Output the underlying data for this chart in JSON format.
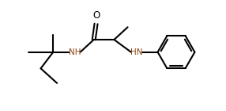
{
  "bg_color": "#ffffff",
  "line_color": "#000000",
  "nh_color": "#8B4513",
  "bond_width": 1.5,
  "fig_width": 2.86,
  "fig_height": 1.4,
  "dpi": 100,
  "font_size": 7.5,
  "xlim": [
    0,
    10
  ],
  "ylim": [
    0,
    4.9
  ]
}
